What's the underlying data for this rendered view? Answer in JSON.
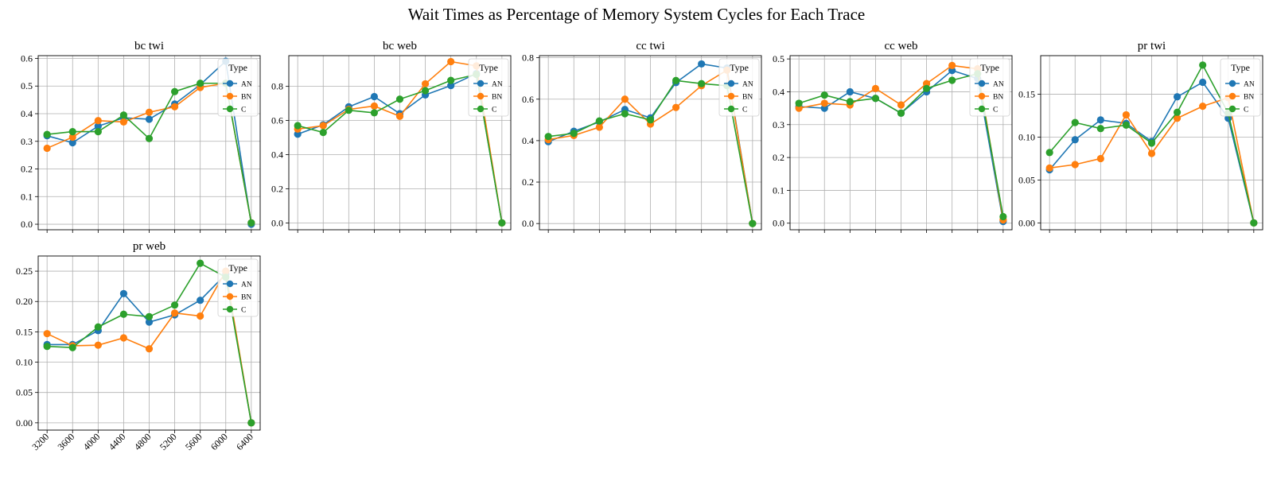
{
  "figure": {
    "title": "Wait Times as Percentage of Memory System Cycles for Each Trace"
  },
  "chart_data": [
    {
      "type": "line",
      "title": "bc twi",
      "x": [
        "3200",
        "3600",
        "4000",
        "4400",
        "4800",
        "5200",
        "5600",
        "6000",
        "6400"
      ],
      "ylim": [
        -0.02,
        0.61
      ],
      "yticks": [
        0.0,
        0.1,
        0.2,
        0.3,
        0.4,
        0.5,
        0.6
      ],
      "ytick_labels": [
        "0.0",
        "0.1",
        "0.2",
        "0.3",
        "0.4",
        "0.5",
        "0.6"
      ],
      "legend": {
        "title": "Type",
        "position": "upper-right"
      },
      "series": [
        {
          "name": "AN",
          "color": "#1f77b4",
          "values": [
            0.32,
            0.295,
            0.355,
            0.385,
            0.38,
            0.435,
            0.505,
            0.59,
            0.0
          ]
        },
        {
          "name": "BN",
          "color": "#ff7f0e",
          "values": [
            0.275,
            0.315,
            0.375,
            0.37,
            0.405,
            0.425,
            0.495,
            0.51,
            0.005
          ]
        },
        {
          "name": "C",
          "color": "#2ca02c",
          "values": [
            0.325,
            0.335,
            0.335,
            0.395,
            0.31,
            0.48,
            0.51,
            0.51,
            0.005
          ]
        }
      ]
    },
    {
      "type": "line",
      "title": "bc web",
      "x": [
        "3200",
        "3600",
        "4000",
        "4400",
        "4800",
        "5200",
        "5600",
        "6000",
        "6400"
      ],
      "ylim": [
        -0.04,
        0.98
      ],
      "yticks": [
        0.0,
        0.2,
        0.4,
        0.6,
        0.8
      ],
      "ytick_labels": [
        "0.0",
        "0.2",
        "0.4",
        "0.6",
        "0.8"
      ],
      "legend": {
        "title": "Type",
        "position": "upper-right"
      },
      "series": [
        {
          "name": "AN",
          "color": "#1f77b4",
          "values": [
            0.52,
            0.575,
            0.68,
            0.74,
            0.64,
            0.75,
            0.805,
            0.875,
            0.0
          ]
        },
        {
          "name": "BN",
          "color": "#ff7f0e",
          "values": [
            0.55,
            0.57,
            0.665,
            0.685,
            0.625,
            0.815,
            0.945,
            0.92,
            0.0
          ]
        },
        {
          "name": "C",
          "color": "#2ca02c",
          "values": [
            0.57,
            0.53,
            0.66,
            0.645,
            0.725,
            0.775,
            0.835,
            0.87,
            0.0
          ]
        }
      ]
    },
    {
      "type": "line",
      "title": "cc twi",
      "x": [
        "3200",
        "3600",
        "4000",
        "4400",
        "4800",
        "5200",
        "5600",
        "6000",
        "6400"
      ],
      "ylim": [
        -0.03,
        0.81
      ],
      "yticks": [
        0.0,
        0.2,
        0.4,
        0.6,
        0.8
      ],
      "ytick_labels": [
        "0.0",
        "0.2",
        "0.4",
        "0.6",
        "0.8"
      ],
      "legend": {
        "title": "Type",
        "position": "upper-right"
      },
      "series": [
        {
          "name": "AN",
          "color": "#1f77b4",
          "values": [
            0.395,
            0.445,
            0.49,
            0.55,
            0.51,
            0.68,
            0.77,
            0.75,
            0.0
          ]
        },
        {
          "name": "BN",
          "color": "#ff7f0e",
          "values": [
            0.405,
            0.425,
            0.465,
            0.6,
            0.48,
            0.56,
            0.665,
            0.74,
            0.0
          ]
        },
        {
          "name": "C",
          "color": "#2ca02c",
          "values": [
            0.42,
            0.435,
            0.495,
            0.53,
            0.5,
            0.69,
            0.675,
            0.665,
            0.0
          ]
        }
      ]
    },
    {
      "type": "line",
      "title": "cc web",
      "x": [
        "3200",
        "3600",
        "4000",
        "4400",
        "4800",
        "5200",
        "5600",
        "6000",
        "6400"
      ],
      "ylim": [
        -0.02,
        0.51
      ],
      "yticks": [
        0.0,
        0.1,
        0.2,
        0.3,
        0.4,
        0.5
      ],
      "ytick_labels": [
        "0.0",
        "0.1",
        "0.2",
        "0.3",
        "0.4",
        "0.5"
      ],
      "legend": {
        "title": "Type",
        "position": "upper-right"
      },
      "series": [
        {
          "name": "AN",
          "color": "#1f77b4",
          "values": [
            0.355,
            0.35,
            0.4,
            0.38,
            0.335,
            0.4,
            0.465,
            0.44,
            0.005
          ]
        },
        {
          "name": "BN",
          "color": "#ff7f0e",
          "values": [
            0.35,
            0.365,
            0.36,
            0.41,
            0.36,
            0.425,
            0.48,
            0.47,
            0.01
          ]
        },
        {
          "name": "C",
          "color": "#2ca02c",
          "values": [
            0.365,
            0.39,
            0.37,
            0.38,
            0.335,
            0.41,
            0.435,
            0.455,
            0.02
          ]
        }
      ]
    },
    {
      "type": "line",
      "title": "pr twi",
      "x": [
        "3200",
        "3600",
        "4000",
        "4400",
        "4800",
        "5200",
        "5600",
        "6000",
        "6400"
      ],
      "ylim": [
        -0.008,
        0.195
      ],
      "yticks": [
        0.0,
        0.05,
        0.1,
        0.15
      ],
      "ytick_labels": [
        "0.00",
        "0.05",
        "0.10",
        "0.15"
      ],
      "legend": {
        "title": "Type",
        "position": "upper-right"
      },
      "series": [
        {
          "name": "AN",
          "color": "#1f77b4",
          "values": [
            0.062,
            0.097,
            0.12,
            0.116,
            0.095,
            0.147,
            0.164,
            0.122,
            0.0
          ]
        },
        {
          "name": "BN",
          "color": "#ff7f0e",
          "values": [
            0.064,
            0.068,
            0.075,
            0.126,
            0.081,
            0.122,
            0.136,
            0.146,
            0.0
          ]
        },
        {
          "name": "C",
          "color": "#2ca02c",
          "values": [
            0.082,
            0.117,
            0.11,
            0.114,
            0.093,
            0.129,
            0.184,
            0.128,
            0.0
          ]
        }
      ]
    },
    {
      "type": "line",
      "title": "pr web",
      "x": [
        "3200",
        "3600",
        "4000",
        "4400",
        "4800",
        "5200",
        "5600",
        "6000",
        "6400"
      ],
      "ylim": [
        -0.012,
        0.275
      ],
      "yticks": [
        0.0,
        0.05,
        0.1,
        0.15,
        0.2,
        0.25
      ],
      "ytick_labels": [
        "0.00",
        "0.05",
        "0.10",
        "0.15",
        "0.20",
        "0.25"
      ],
      "legend": {
        "title": "Type",
        "position": "upper-right"
      },
      "series": [
        {
          "name": "AN",
          "color": "#1f77b4",
          "values": [
            0.129,
            0.129,
            0.152,
            0.213,
            0.166,
            0.178,
            0.202,
            0.245,
            0.0
          ]
        },
        {
          "name": "BN",
          "color": "#ff7f0e",
          "values": [
            0.147,
            0.127,
            0.128,
            0.14,
            0.122,
            0.181,
            0.176,
            0.25,
            0.0
          ]
        },
        {
          "name": "C",
          "color": "#2ca02c",
          "values": [
            0.126,
            0.124,
            0.158,
            0.179,
            0.175,
            0.194,
            0.263,
            0.24,
            0.0
          ]
        }
      ]
    }
  ]
}
